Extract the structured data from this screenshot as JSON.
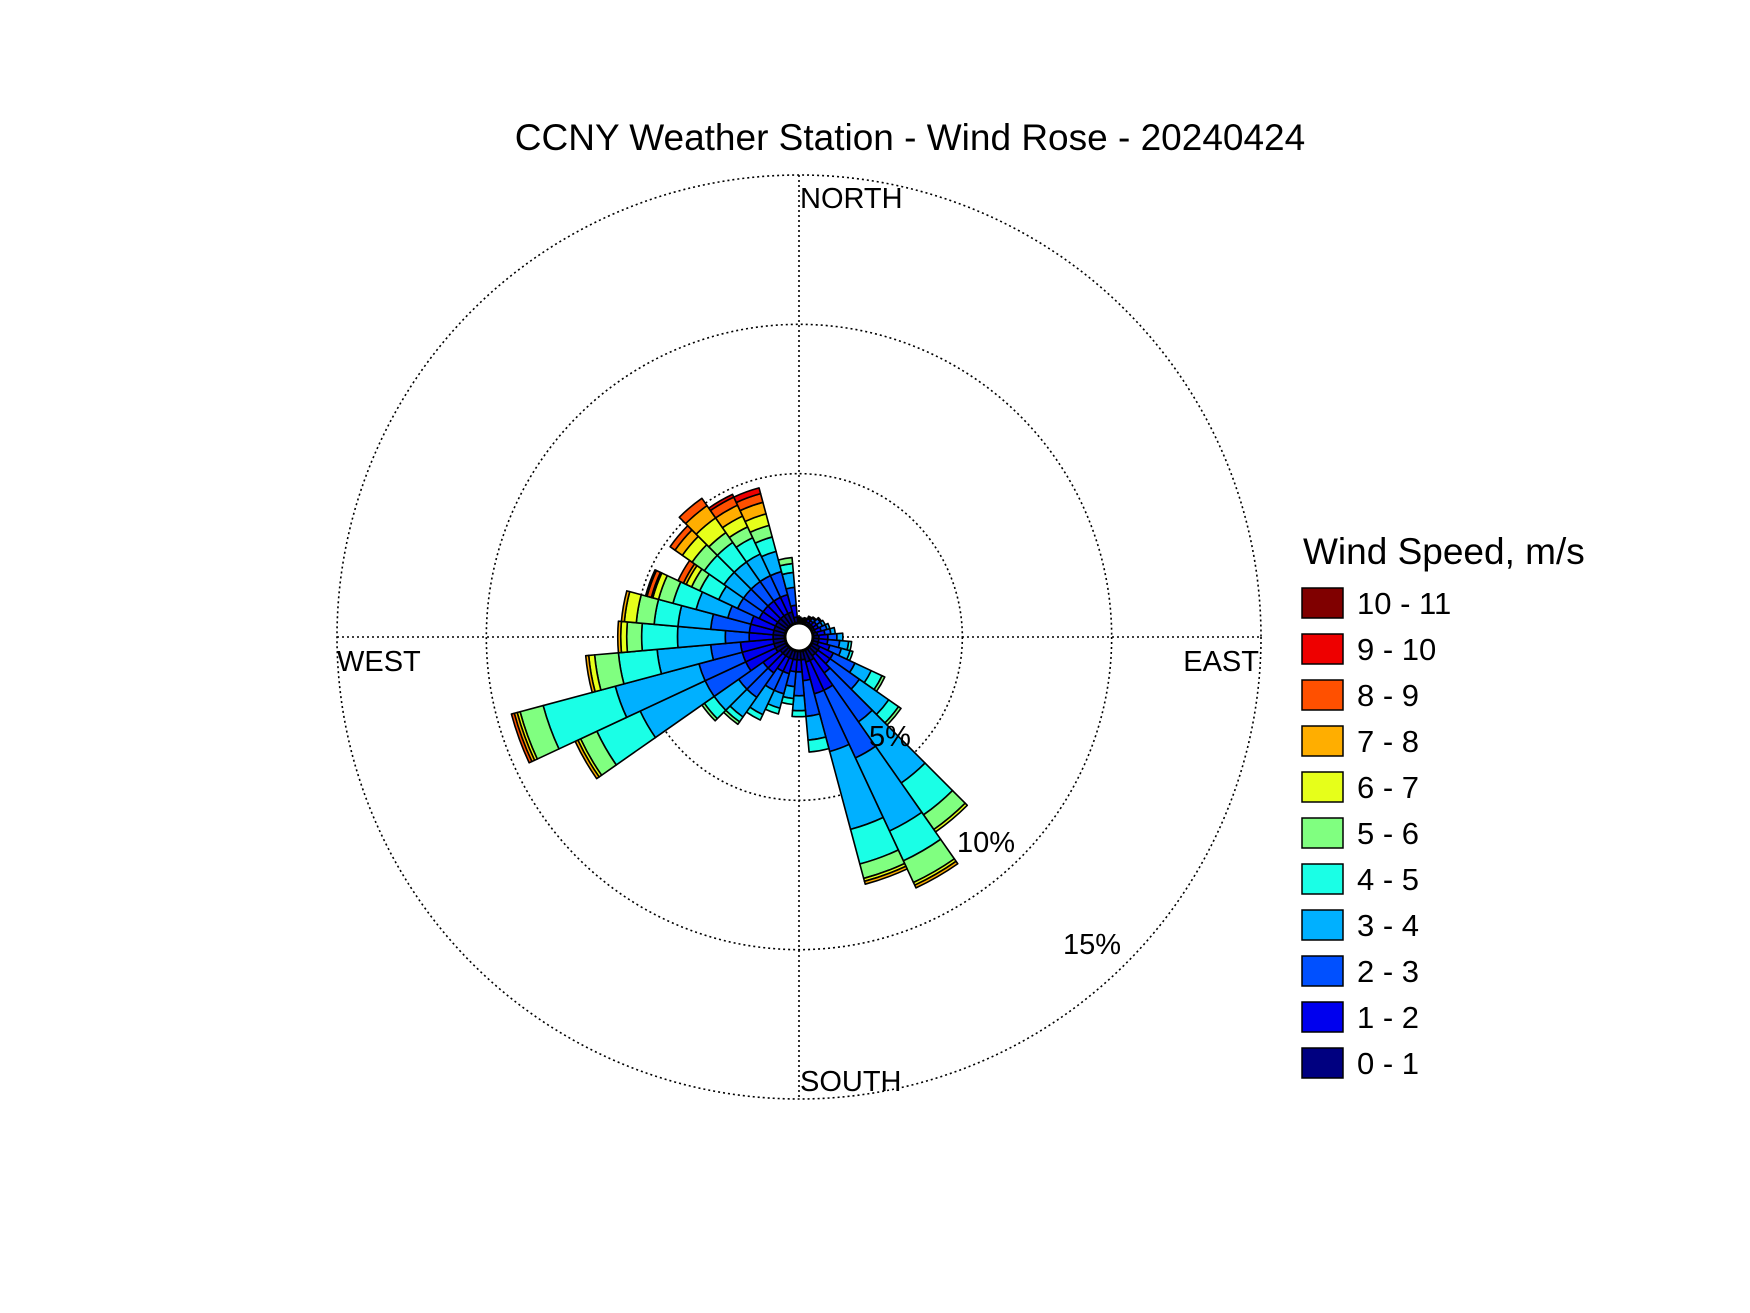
{
  "chart_data": {
    "type": "wind-rose",
    "title": "CCNY Weather Station - Wind Rose - 20240424",
    "direction_labels": [
      "NORTH",
      "EAST",
      "SOUTH",
      "WEST"
    ],
    "radial_unit": "%",
    "radial_ticks": [
      5,
      10,
      15
    ],
    "radial_tick_labels": [
      "5%",
      "10%",
      "15%"
    ],
    "radial_max": 15,
    "grid": "dotted",
    "legend": {
      "title": "Wind Speed, m/s",
      "position": "right",
      "bins": [
        {
          "label": "10 - 11",
          "color": "#800000"
        },
        {
          "label": "9 - 10",
          "color": "#ee0000"
        },
        {
          "label": "8 - 9",
          "color": "#ff5000"
        },
        {
          "label": "7 - 8",
          "color": "#ffae00"
        },
        {
          "label": "6 - 7",
          "color": "#e6ff1a"
        },
        {
          "label": "5 - 6",
          "color": "#80ff80"
        },
        {
          "label": "4 - 5",
          "color": "#1affe6"
        },
        {
          "label": "3 - 4",
          "color": "#00b0ff"
        },
        {
          "label": "2 - 3",
          "color": "#0050ff"
        },
        {
          "label": "1 - 2",
          "color": "#0000ee"
        },
        {
          "label": "0 - 1",
          "color": "#000080"
        }
      ]
    },
    "bin_order_inner_to_outer": [
      "0 - 1",
      "1 - 2",
      "2 - 3",
      "3 - 4",
      "4 - 5",
      "5 - 6",
      "6 - 7",
      "7 - 8",
      "8 - 9",
      "9 - 10",
      "10 - 11"
    ],
    "sector_width_deg": 10,
    "sectors": [
      {
        "direction_deg": 0,
        "cumulative_pct": [
          0.05,
          0.1,
          0.15,
          0.18,
          0.2
        ]
      },
      {
        "direction_deg": 10,
        "cumulative_pct": [
          0.05,
          0.1,
          0.12,
          0.15,
          0.17
        ]
      },
      {
        "direction_deg": 20,
        "cumulative_pct": [
          0.05,
          0.1,
          0.15,
          0.18,
          0.2
        ]
      },
      {
        "direction_deg": 30,
        "cumulative_pct": [
          0.1,
          0.2,
          0.25,
          0.28,
          0.3
        ]
      },
      {
        "direction_deg": 40,
        "cumulative_pct": [
          0.1,
          0.2,
          0.3,
          0.35
        ]
      },
      {
        "direction_deg": 50,
        "cumulative_pct": [
          0.1,
          0.25,
          0.4,
          0.45
        ]
      },
      {
        "direction_deg": 60,
        "cumulative_pct": [
          0.1,
          0.25,
          0.4,
          0.5
        ]
      },
      {
        "direction_deg": 70,
        "cumulative_pct": [
          0.1,
          0.3,
          0.5,
          0.6
        ]
      },
      {
        "direction_deg": 80,
        "cumulative_pct": [
          0.15,
          0.4,
          0.6,
          0.75
        ]
      },
      {
        "direction_deg": 90,
        "cumulative_pct": [
          0.2,
          0.5,
          0.8,
          1.0
        ]
      },
      {
        "direction_deg": 100,
        "cumulative_pct": [
          0.2,
          0.5,
          0.9,
          1.2,
          1.3
        ]
      },
      {
        "direction_deg": 110,
        "cumulative_pct": [
          0.2,
          0.6,
          1.0,
          1.3,
          1.4
        ]
      },
      {
        "direction_deg": 120,
        "cumulative_pct": [
          0.3,
          0.8,
          1.6,
          2.2,
          2.6,
          2.7
        ]
      },
      {
        "direction_deg": 130,
        "cumulative_pct": [
          0.3,
          0.8,
          2.0,
          3.2,
          3.6,
          3.7
        ]
      },
      {
        "direction_deg": 140,
        "cumulative_pct": [
          0.3,
          1.0,
          3.0,
          5.5,
          6.8,
          7.4,
          7.5
        ]
      },
      {
        "direction_deg": 150,
        "cumulative_pct": [
          0.4,
          1.5,
          4.0,
          6.7,
          7.8,
          8.6,
          8.7,
          8.8
        ]
      },
      {
        "direction_deg": 160,
        "cumulative_pct": [
          0.4,
          1.5,
          3.5,
          6.2,
          7.4,
          7.9,
          8.0,
          8.1
        ]
      },
      {
        "direction_deg": 170,
        "cumulative_pct": [
          0.3,
          1.0,
          2.2,
          3.0,
          3.4
        ]
      },
      {
        "direction_deg": 180,
        "cumulative_pct": [
          0.3,
          0.7,
          1.5,
          2.0,
          2.2
        ]
      },
      {
        "direction_deg": 190,
        "cumulative_pct": [
          0.3,
          0.7,
          1.2,
          1.6,
          1.8
        ]
      },
      {
        "direction_deg": 200,
        "cumulative_pct": [
          0.3,
          0.8,
          1.5,
          2.0,
          2.2
        ]
      },
      {
        "direction_deg": 210,
        "cumulative_pct": [
          0.3,
          0.8,
          1.5,
          2.4,
          2.6
        ]
      },
      {
        "direction_deg": 220,
        "cumulative_pct": [
          0.3,
          1.0,
          2.0,
          2.8,
          3.0,
          3.1
        ]
      },
      {
        "direction_deg": 230,
        "cumulative_pct": [
          0.3,
          1.0,
          2.0,
          3.0,
          3.4,
          3.5
        ]
      },
      {
        "direction_deg": 240,
        "cumulative_pct": [
          0.4,
          1.5,
          3.0,
          5.4,
          7.0,
          7.6,
          7.7,
          7.8
        ]
      },
      {
        "direction_deg": 250,
        "cumulative_pct": [
          0.4,
          1.5,
          3.0,
          5.9,
          8.4,
          9.2,
          9.3,
          9.4,
          9.5
        ]
      },
      {
        "direction_deg": 260,
        "cumulative_pct": [
          0.4,
          1.5,
          2.5,
          4.3,
          5.6,
          6.4,
          6.6,
          6.7
        ]
      },
      {
        "direction_deg": 270,
        "cumulative_pct": [
          0.4,
          1.2,
          2.0,
          3.6,
          4.8,
          5.3,
          5.5,
          5.6
        ]
      },
      {
        "direction_deg": 280,
        "cumulative_pct": [
          0.4,
          1.2,
          2.5,
          3.6,
          4.4,
          5.0,
          5.4,
          5.5
        ]
      },
      {
        "direction_deg": 290,
        "cumulative_pct": [
          0.4,
          1.2,
          2.0,
          3.1,
          3.9,
          4.4,
          4.6,
          4.65,
          4.8,
          4.85
        ]
      },
      {
        "direction_deg": 300,
        "cumulative_pct": [
          0.4,
          1.0,
          1.8,
          2.5,
          3.2,
          3.5,
          3.7,
          3.8,
          4.0
        ]
      },
      {
        "direction_deg": 310,
        "cumulative_pct": [
          0.4,
          1.0,
          1.8,
          2.6,
          3.4,
          3.9,
          4.3,
          4.6,
          4.8
        ]
      },
      {
        "direction_deg": 320,
        "cumulative_pct": [
          0.4,
          1.0,
          1.8,
          2.6,
          3.4,
          3.8,
          4.4,
          4.9,
          5.2
        ]
      },
      {
        "direction_deg": 330,
        "cumulative_pct": [
          0.4,
          1.0,
          1.8,
          2.6,
          3.2,
          3.6,
          4.0,
          4.4,
          4.7,
          4.8
        ]
      },
      {
        "direction_deg": 340,
        "cumulative_pct": [
          0.4,
          1.0,
          1.8,
          2.5,
          3.0,
          3.4,
          3.8,
          4.2,
          4.5,
          4.7
        ]
      },
      {
        "direction_deg": 350,
        "cumulative_pct": [
          0.2,
          0.6,
          1.2,
          1.7,
          2.0,
          2.2
        ]
      }
    ]
  }
}
